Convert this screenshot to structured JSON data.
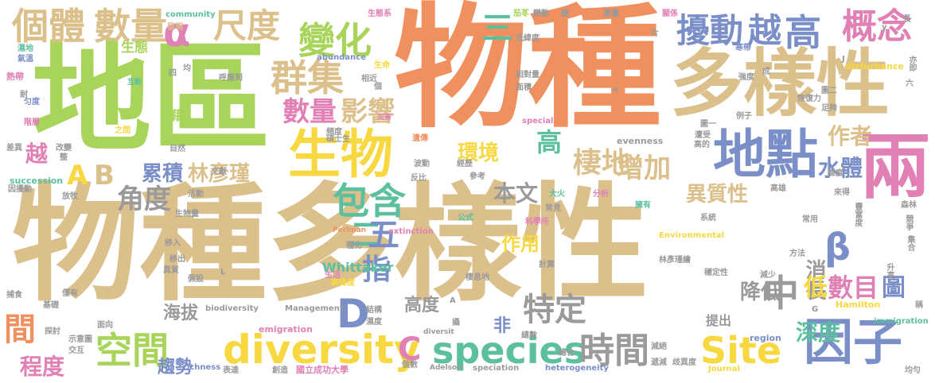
{
  "palette": {
    "tan": "#dcc08c",
    "orange": "#f0905e",
    "green": "#a8d45a",
    "yellow": "#f8d840",
    "blue": "#7a8ec8",
    "pink": "#e080b4",
    "teal": "#5cc0a0",
    "gray": "#9a9a9a"
  },
  "words": [
    {
      "t": "物種多樣性",
      "c": "tan"
    },
    {
      "t": "物種",
      "c": "orange"
    },
    {
      "t": "地區",
      "c": "green"
    },
    {
      "t": "多樣性",
      "c": "tan"
    },
    {
      "t": "生物",
      "c": "yellow"
    },
    {
      "t": "地點",
      "c": "blue"
    },
    {
      "t": "兩",
      "c": "pink"
    },
    {
      "t": "群集",
      "c": "tan"
    },
    {
      "t": "個體",
      "c": "tan"
    },
    {
      "t": "數量",
      "c": "tan"
    },
    {
      "t": "尺度",
      "c": "tan"
    },
    {
      "t": "變化",
      "c": "green"
    },
    {
      "t": "α",
      "c": "pink"
    },
    {
      "t": "擾動",
      "c": "blue"
    },
    {
      "t": "越",
      "c": "blue"
    },
    {
      "t": "高",
      "c": "blue"
    },
    {
      "t": "概念",
      "c": "pink"
    },
    {
      "t": "三",
      "c": "teal"
    },
    {
      "t": "數量",
      "c": "pink"
    },
    {
      "t": "影響",
      "c": "tan"
    },
    {
      "t": "生態",
      "c": "green"
    },
    {
      "t": "diversity",
      "c": "yellow"
    },
    {
      "t": "species",
      "c": "teal"
    },
    {
      "t": "Site",
      "c": "yellow"
    },
    {
      "t": "因子",
      "c": "blue"
    },
    {
      "t": "空間",
      "c": "green"
    },
    {
      "t": "時間",
      "c": "gray"
    },
    {
      "t": "包含",
      "c": "teal"
    },
    {
      "t": "環境",
      "c": "yellow"
    },
    {
      "t": "棲地",
      "c": "tan"
    },
    {
      "t": "增加",
      "c": "tan"
    },
    {
      "t": "累積",
      "c": "blue"
    },
    {
      "t": "林彥瑾",
      "c": "tan"
    },
    {
      "t": "角度",
      "c": "gray"
    },
    {
      "t": "二",
      "c": "teal"
    },
    {
      "t": "五",
      "c": "blue"
    },
    {
      "t": "作用",
      "c": "yellow"
    },
    {
      "t": "特定",
      "c": "gray"
    },
    {
      "t": "β",
      "c": "blue"
    },
    {
      "t": "消長",
      "c": "gray"
    },
    {
      "t": "數目",
      "c": "pink"
    },
    {
      "t": "圖",
      "c": "blue"
    },
    {
      "t": "中",
      "c": "gray"
    },
    {
      "t": "低",
      "c": "yellow"
    },
    {
      "t": "降低",
      "c": "gray"
    },
    {
      "t": "深度",
      "c": "teal"
    },
    {
      "t": "異質性",
      "c": "tan"
    },
    {
      "t": "水體",
      "c": "blue"
    },
    {
      "t": "作者",
      "c": "tan"
    },
    {
      "t": "本文",
      "c": "gray"
    },
    {
      "t": "高",
      "c": "teal"
    },
    {
      "t": "D",
      "c": "blue"
    },
    {
      "t": "C",
      "c": "pink"
    },
    {
      "t": "A",
      "c": "yellow"
    },
    {
      "t": "B",
      "c": "tan"
    },
    {
      "t": "越",
      "c": "pink"
    },
    {
      "t": "間",
      "c": "orange"
    },
    {
      "t": "程度",
      "c": "pink"
    },
    {
      "t": "趨勢",
      "c": "blue"
    },
    {
      "t": "海拔",
      "c": "gray"
    },
    {
      "t": "高度",
      "c": "gray"
    },
    {
      "t": "非",
      "c": "blue"
    },
    {
      "t": "指",
      "c": "blue"
    },
    {
      "t": "Whittaker",
      "c": "teal"
    },
    {
      "t": "提出",
      "c": "gray"
    },
    {
      "t": "community",
      "c": "teal"
    },
    {
      "t": "abundance",
      "c": "blue"
    },
    {
      "t": "disturbance",
      "c": "yellow"
    },
    {
      "t": "succession",
      "c": "teal"
    },
    {
      "t": "extinction",
      "c": "pink"
    },
    {
      "t": "Environmental",
      "c": "yellow"
    },
    {
      "t": "biodiversity",
      "c": "gray"
    },
    {
      "t": "Management",
      "c": "gray"
    },
    {
      "t": "emigration",
      "c": "pink"
    },
    {
      "t": "immigration",
      "c": "teal"
    },
    {
      "t": "Hamilton",
      "c": "yellow"
    },
    {
      "t": "evenness",
      "c": "gray"
    },
    {
      "t": "special",
      "c": "pink"
    },
    {
      "t": "region",
      "c": "blue"
    },
    {
      "t": "richness",
      "c": "blue"
    },
    {
      "t": "speciation",
      "c": "gray"
    },
    {
      "t": "heterogeneity",
      "c": "blue"
    },
    {
      "t": "Adelson",
      "c": "gray"
    },
    {
      "t": "Journal",
      "c": "yellow"
    },
    {
      "t": "diversit",
      "c": "gray"
    },
    {
      "t": "Perlman",
      "c": "orange"
    },
    {
      "t": "國立成功大學",
      "c": "pink"
    },
    {
      "t": "林彥瑾繪",
      "c": "gray"
    },
    {
      "t": "生態系",
      "c": "pink"
    },
    {
      "t": "茄苳",
      "c": "green"
    },
    {
      "t": "變動",
      "c": "gray"
    },
    {
      "t": "變",
      "c": "gray"
    },
    {
      "t": "重疊",
      "c": "gray"
    },
    {
      "t": "關係",
      "c": "pink"
    },
    {
      "t": "發現",
      "c": "tan"
    },
    {
      "t": "互動",
      "c": "teal"
    },
    {
      "t": "呼應到",
      "c": "gray"
    },
    {
      "t": "生命",
      "c": "yellow"
    },
    {
      "t": "相近",
      "c": "gray"
    },
    {
      "t": "低緯度",
      "c": "gray"
    },
    {
      "t": "寒帶",
      "c": "blue"
    },
    {
      "t": "強度",
      "c": "gray"
    },
    {
      "t": "面積",
      "c": "gray"
    },
    {
      "t": "相對量",
      "c": "gray"
    },
    {
      "t": "熱帶",
      "c": "pink"
    },
    {
      "t": "氣溫",
      "c": "blue"
    },
    {
      "t": "濕地",
      "c": "teal"
    },
    {
      "t": "匀度",
      "c": "blue"
    },
    {
      "t": "階層",
      "c": "pink"
    },
    {
      "t": "藉",
      "c": "green"
    },
    {
      "t": "之間",
      "c": "yellow"
    },
    {
      "t": "災害",
      "c": "pink"
    },
    {
      "t": "頻度",
      "c": "gray"
    },
    {
      "t": "碩士生",
      "c": "gray"
    },
    {
      "t": "遺傳",
      "c": "orange"
    },
    {
      "t": "波動",
      "c": "gray"
    },
    {
      "t": "經歷",
      "c": "gray"
    },
    {
      "t": "反比",
      "c": "gray"
    },
    {
      "t": "參考",
      "c": "gray"
    },
    {
      "t": "大火",
      "c": "teal"
    },
    {
      "t": "常見",
      "c": "gray"
    },
    {
      "t": "分析",
      "c": "pink"
    },
    {
      "t": "擁有",
      "c": "teal"
    },
    {
      "t": "科學所",
      "c": "pink"
    },
    {
      "t": "公式",
      "c": "teal"
    },
    {
      "t": "系統",
      "c": "gray"
    },
    {
      "t": "種化",
      "c": "gray"
    },
    {
      "t": "生活",
      "c": "pink"
    },
    {
      "t": "高緯度",
      "c": "yellow"
    },
    {
      "t": "棲息地",
      "c": "gray"
    },
    {
      "t": "結構",
      "c": "gray"
    },
    {
      "t": "濕度",
      "c": "gray"
    },
    {
      "t": "攝",
      "c": "gray"
    },
    {
      "t": "總數",
      "c": "gray"
    },
    {
      "t": "總合",
      "c": "gray"
    },
    {
      "t": "個數",
      "c": "gray"
    },
    {
      "t": "表達",
      "c": "gray"
    },
    {
      "t": "創造",
      "c": "gray"
    },
    {
      "t": "減絕",
      "c": "gray"
    },
    {
      "t": "遞減",
      "c": "gray"
    },
    {
      "t": "歧異度",
      "c": "gray"
    },
    {
      "t": "均勻",
      "c": "gray"
    },
    {
      "t": "恢復力",
      "c": "gray"
    },
    {
      "t": "足夠",
      "c": "gray"
    },
    {
      "t": "例子",
      "c": "gray"
    },
    {
      "t": "圖二",
      "c": "gray"
    },
    {
      "t": "圖一",
      "c": "gray"
    },
    {
      "t": "遭受",
      "c": "gray"
    },
    {
      "t": "高的",
      "c": "gray"
    },
    {
      "t": "緯度",
      "c": "gray"
    },
    {
      "t": "高雄",
      "c": "gray"
    },
    {
      "t": "來得",
      "c": "gray"
    },
    {
      "t": "豐富度",
      "c": "gray"
    },
    {
      "t": "森林",
      "c": "gray"
    },
    {
      "t": "競爭",
      "c": "gray"
    },
    {
      "t": "集合",
      "c": "gray"
    },
    {
      "t": "升高",
      "c": "gray"
    },
    {
      "t": "方法",
      "c": "gray"
    },
    {
      "t": "常用",
      "c": "gray"
    },
    {
      "t": "減少",
      "c": "gray"
    },
    {
      "t": "穩定性",
      "c": "gray"
    },
    {
      "t": "稱",
      "c": "gray"
    },
    {
      "t": "亦即",
      "c": "gray"
    },
    {
      "t": "六",
      "c": "gray"
    },
    {
      "t": "成",
      "c": "gray"
    },
    {
      "t": "片",
      "c": "gray"
    },
    {
      "t": "長",
      "c": "gray"
    },
    {
      "t": "差異",
      "c": "gray"
    },
    {
      "t": "改變",
      "c": "gray"
    },
    {
      "t": "整",
      "c": "gray"
    },
    {
      "t": "因擾動",
      "c": "gray"
    },
    {
      "t": "放牧",
      "c": "gray"
    },
    {
      "t": "自然",
      "c": "gray"
    },
    {
      "t": "文獻",
      "c": "gray"
    },
    {
      "t": "活動",
      "c": "gray"
    },
    {
      "t": "生物量",
      "c": "gray"
    },
    {
      "t": "移入",
      "c": "gray"
    },
    {
      "t": "移出",
      "c": "gray"
    },
    {
      "t": "異質",
      "c": "gray"
    },
    {
      "t": "假設",
      "c": "gray"
    },
    {
      "t": "捕食",
      "c": "gray"
    },
    {
      "t": "僅有",
      "c": "gray"
    },
    {
      "t": "基礎",
      "c": "gray"
    },
    {
      "t": "探討",
      "c": "gray"
    },
    {
      "t": "示意圖",
      "c": "gray"
    },
    {
      "t": "交互",
      "c": "gray"
    },
    {
      "t": "面向",
      "c": "gray"
    },
    {
      "t": "計算",
      "c": "gray"
    },
    {
      "t": "四",
      "c": "gray"
    },
    {
      "t": "均",
      "c": "gray"
    },
    {
      "t": "個",
      "c": "gray"
    },
    {
      "t": "a",
      "c": "gray"
    },
    {
      "t": "y",
      "c": "gray"
    },
    {
      "t": "J",
      "c": "gray"
    },
    {
      "t": "G",
      "c": "gray"
    },
    {
      "t": "A",
      "c": "gray"
    },
    {
      "t": "L",
      "c": "gray"
    },
    {
      "t": "耐",
      "c": "gray"
    }
  ]
}
